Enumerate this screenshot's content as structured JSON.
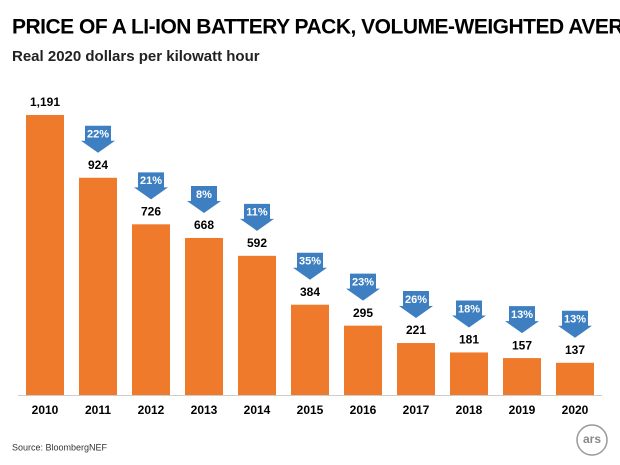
{
  "chart_data": {
    "type": "bar",
    "title": "PRICE OF A LI-ION BATTERY PACK, VOLUME-WEIGHTED AVERAGE",
    "subtitle": "Real 2020 dollars per kilowatt hour",
    "categories": [
      "2010",
      "2011",
      "2012",
      "2013",
      "2014",
      "2015",
      "2016",
      "2017",
      "2018",
      "2019",
      "2020"
    ],
    "values": [
      1191,
      924,
      726,
      668,
      592,
      384,
      295,
      221,
      181,
      157,
      137
    ],
    "value_labels": [
      "1,191",
      "924",
      "726",
      "668",
      "592",
      "384",
      "295",
      "221",
      "181",
      "157",
      "137"
    ],
    "annotations": [
      "22%",
      "21%",
      "8%",
      "11%",
      "35%",
      "23%",
      "26%",
      "18%",
      "13%",
      "13%"
    ],
    "color": "#f07a2c",
    "annotation_color": "#3d7fc1",
    "source": "Source: BloombergNEF",
    "logo": "ars"
  }
}
